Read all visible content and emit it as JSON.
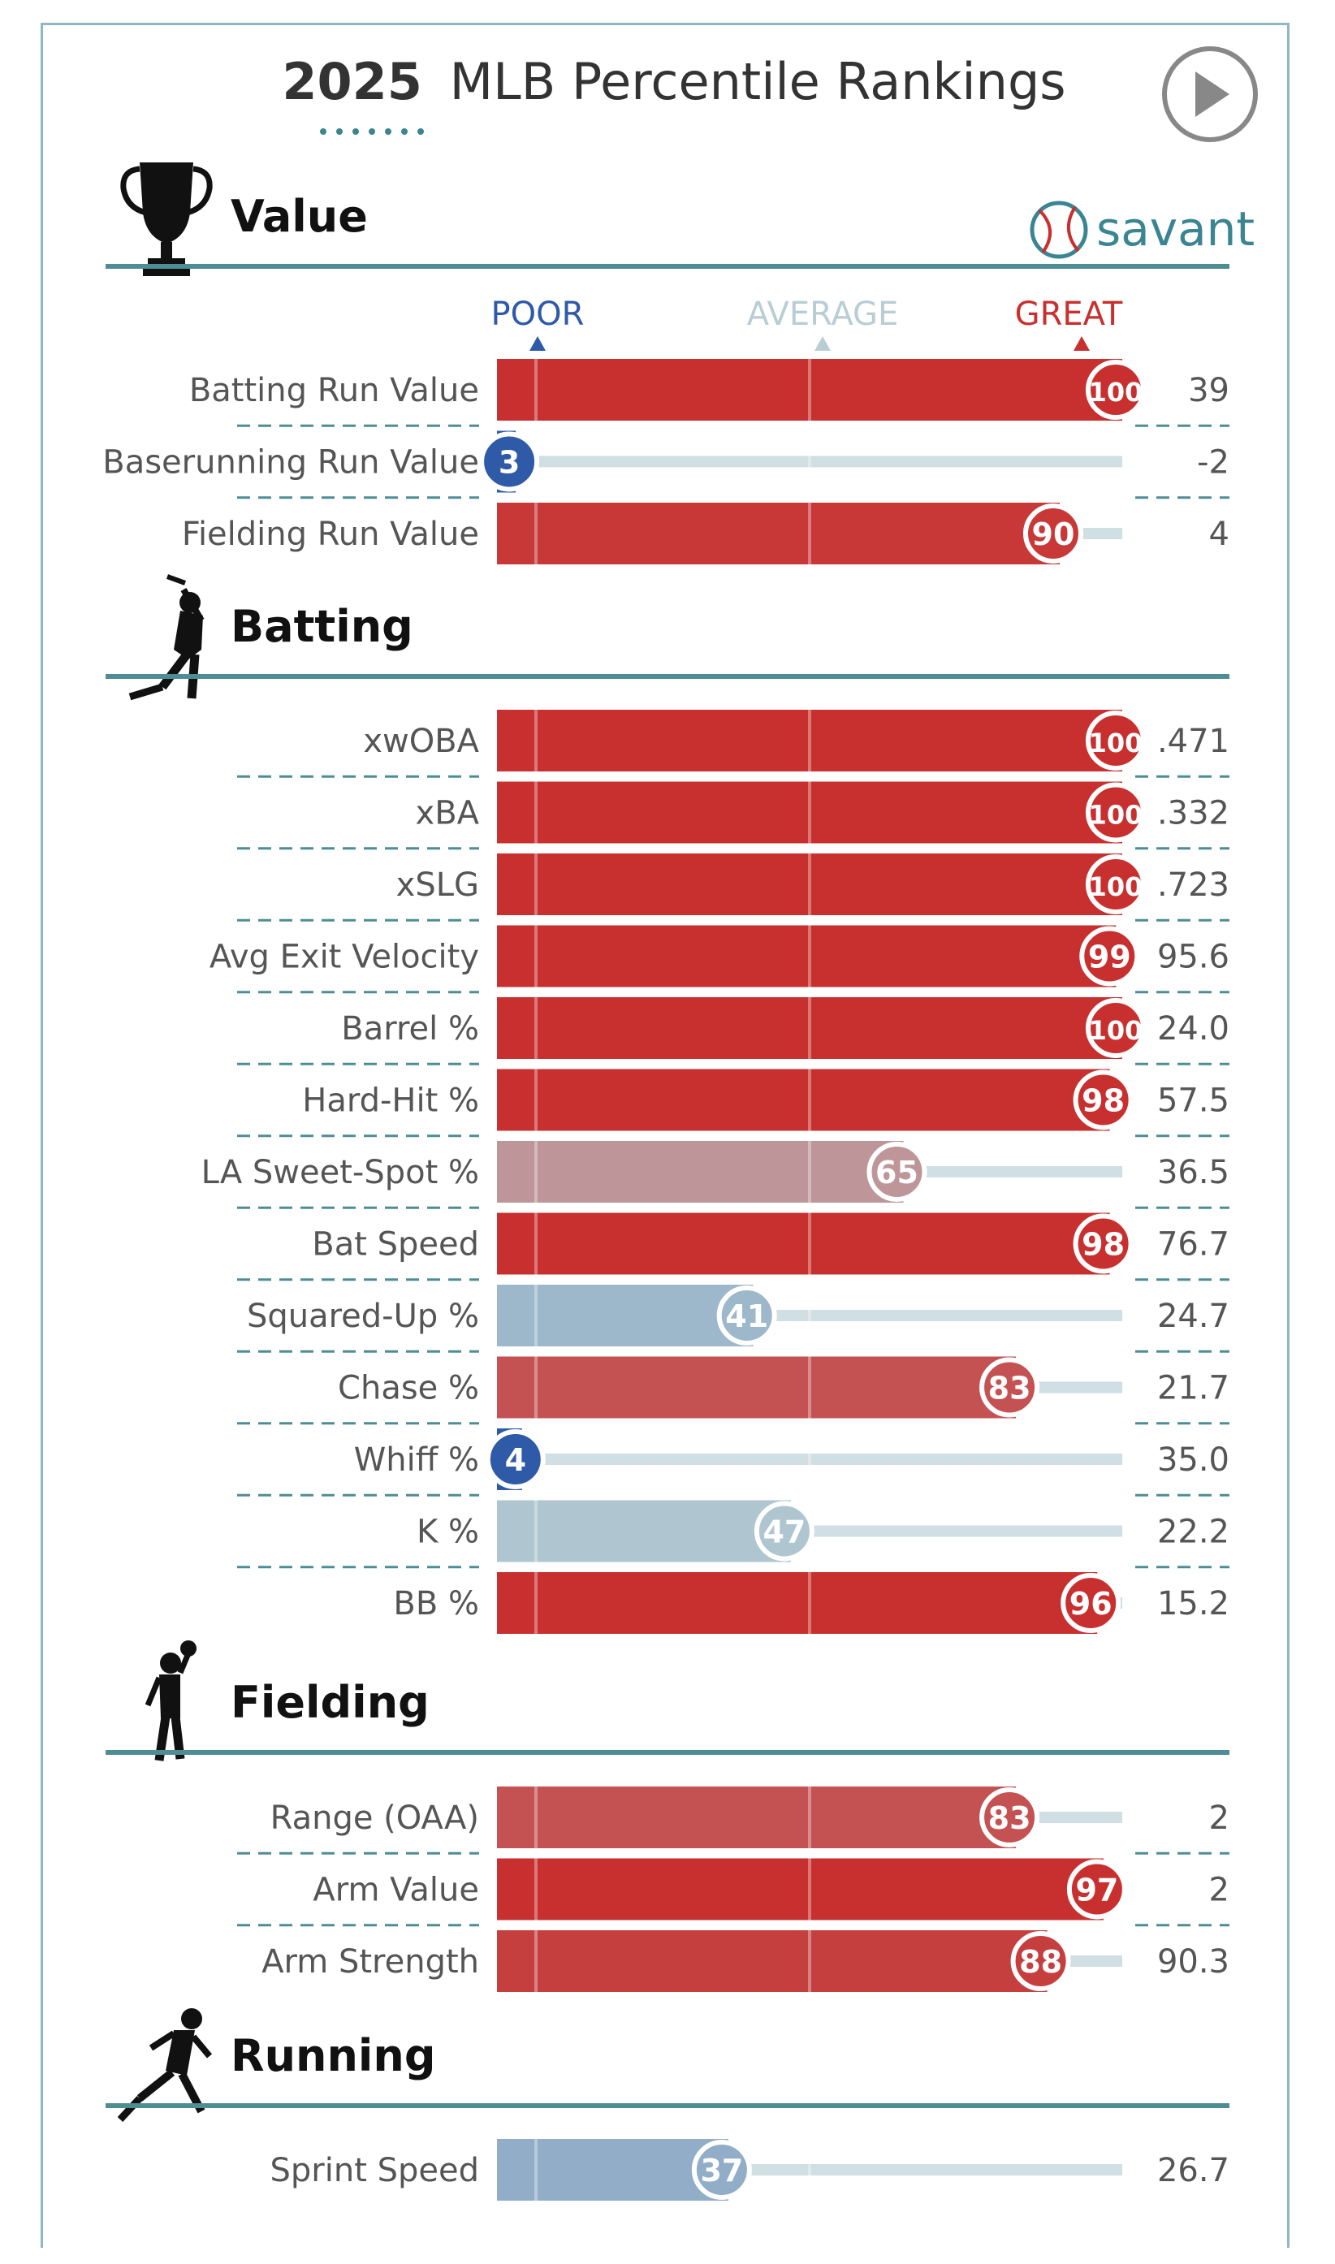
{
  "header": {
    "year": "2025",
    "title_rest": "MLB Percentile Rankings",
    "play_icon": "play-circle-icon"
  },
  "brand": {
    "name": "savant",
    "icon": "baseball-icon",
    "color": "#3b8593"
  },
  "scale": {
    "poor": "POOR",
    "average": "AVERAGE",
    "great": "GREAT"
  },
  "colors": {
    "poor": "#2e5aa8",
    "average": "#b8ced4",
    "great": "#c8302f",
    "track": "#d0dfe3",
    "section_line": "#4e8d93",
    "text": "#555555"
  },
  "chart_data": {
    "type": "bar",
    "xlim": [
      0,
      100
    ],
    "sections": [
      {
        "name": "Value",
        "icon": "trophy-icon",
        "rows": [
          {
            "label": "Batting Run Value",
            "percentile": 100,
            "value": "39"
          },
          {
            "label": "Baserunning Run Value",
            "percentile": 3,
            "value": "-2"
          },
          {
            "label": "Fielding Run Value",
            "percentile": 90,
            "value": "4"
          }
        ]
      },
      {
        "name": "Batting",
        "icon": "batter-icon",
        "rows": [
          {
            "label": "xwOBA",
            "percentile": 100,
            "value": ".471"
          },
          {
            "label": "xBA",
            "percentile": 100,
            "value": ".332"
          },
          {
            "label": "xSLG",
            "percentile": 100,
            "value": ".723"
          },
          {
            "label": "Avg Exit Velocity",
            "percentile": 99,
            "value": "95.6"
          },
          {
            "label": "Barrel %",
            "percentile": 100,
            "value": "24.0"
          },
          {
            "label": "Hard-Hit %",
            "percentile": 98,
            "value": "57.5"
          },
          {
            "label": "LA Sweet-Spot %",
            "percentile": 65,
            "value": "36.5"
          },
          {
            "label": "Bat Speed",
            "percentile": 98,
            "value": "76.7"
          },
          {
            "label": "Squared-Up %",
            "percentile": 41,
            "value": "24.7"
          },
          {
            "label": "Chase %",
            "percentile": 83,
            "value": "21.7"
          },
          {
            "label": "Whiff %",
            "percentile": 4,
            "value": "35.0"
          },
          {
            "label": "K %",
            "percentile": 47,
            "value": "22.2"
          },
          {
            "label": "BB %",
            "percentile": 96,
            "value": "15.2"
          }
        ]
      },
      {
        "name": "Fielding",
        "icon": "fielder-icon",
        "rows": [
          {
            "label": "Range (OAA)",
            "percentile": 83,
            "value": "2"
          },
          {
            "label": "Arm Value",
            "percentile": 97,
            "value": "2"
          },
          {
            "label": "Arm Strength",
            "percentile": 88,
            "value": "90.3"
          }
        ]
      },
      {
        "name": "Running",
        "icon": "runner-icon",
        "rows": [
          {
            "label": "Sprint Speed",
            "percentile": 37,
            "value": "26.7"
          }
        ]
      }
    ]
  }
}
